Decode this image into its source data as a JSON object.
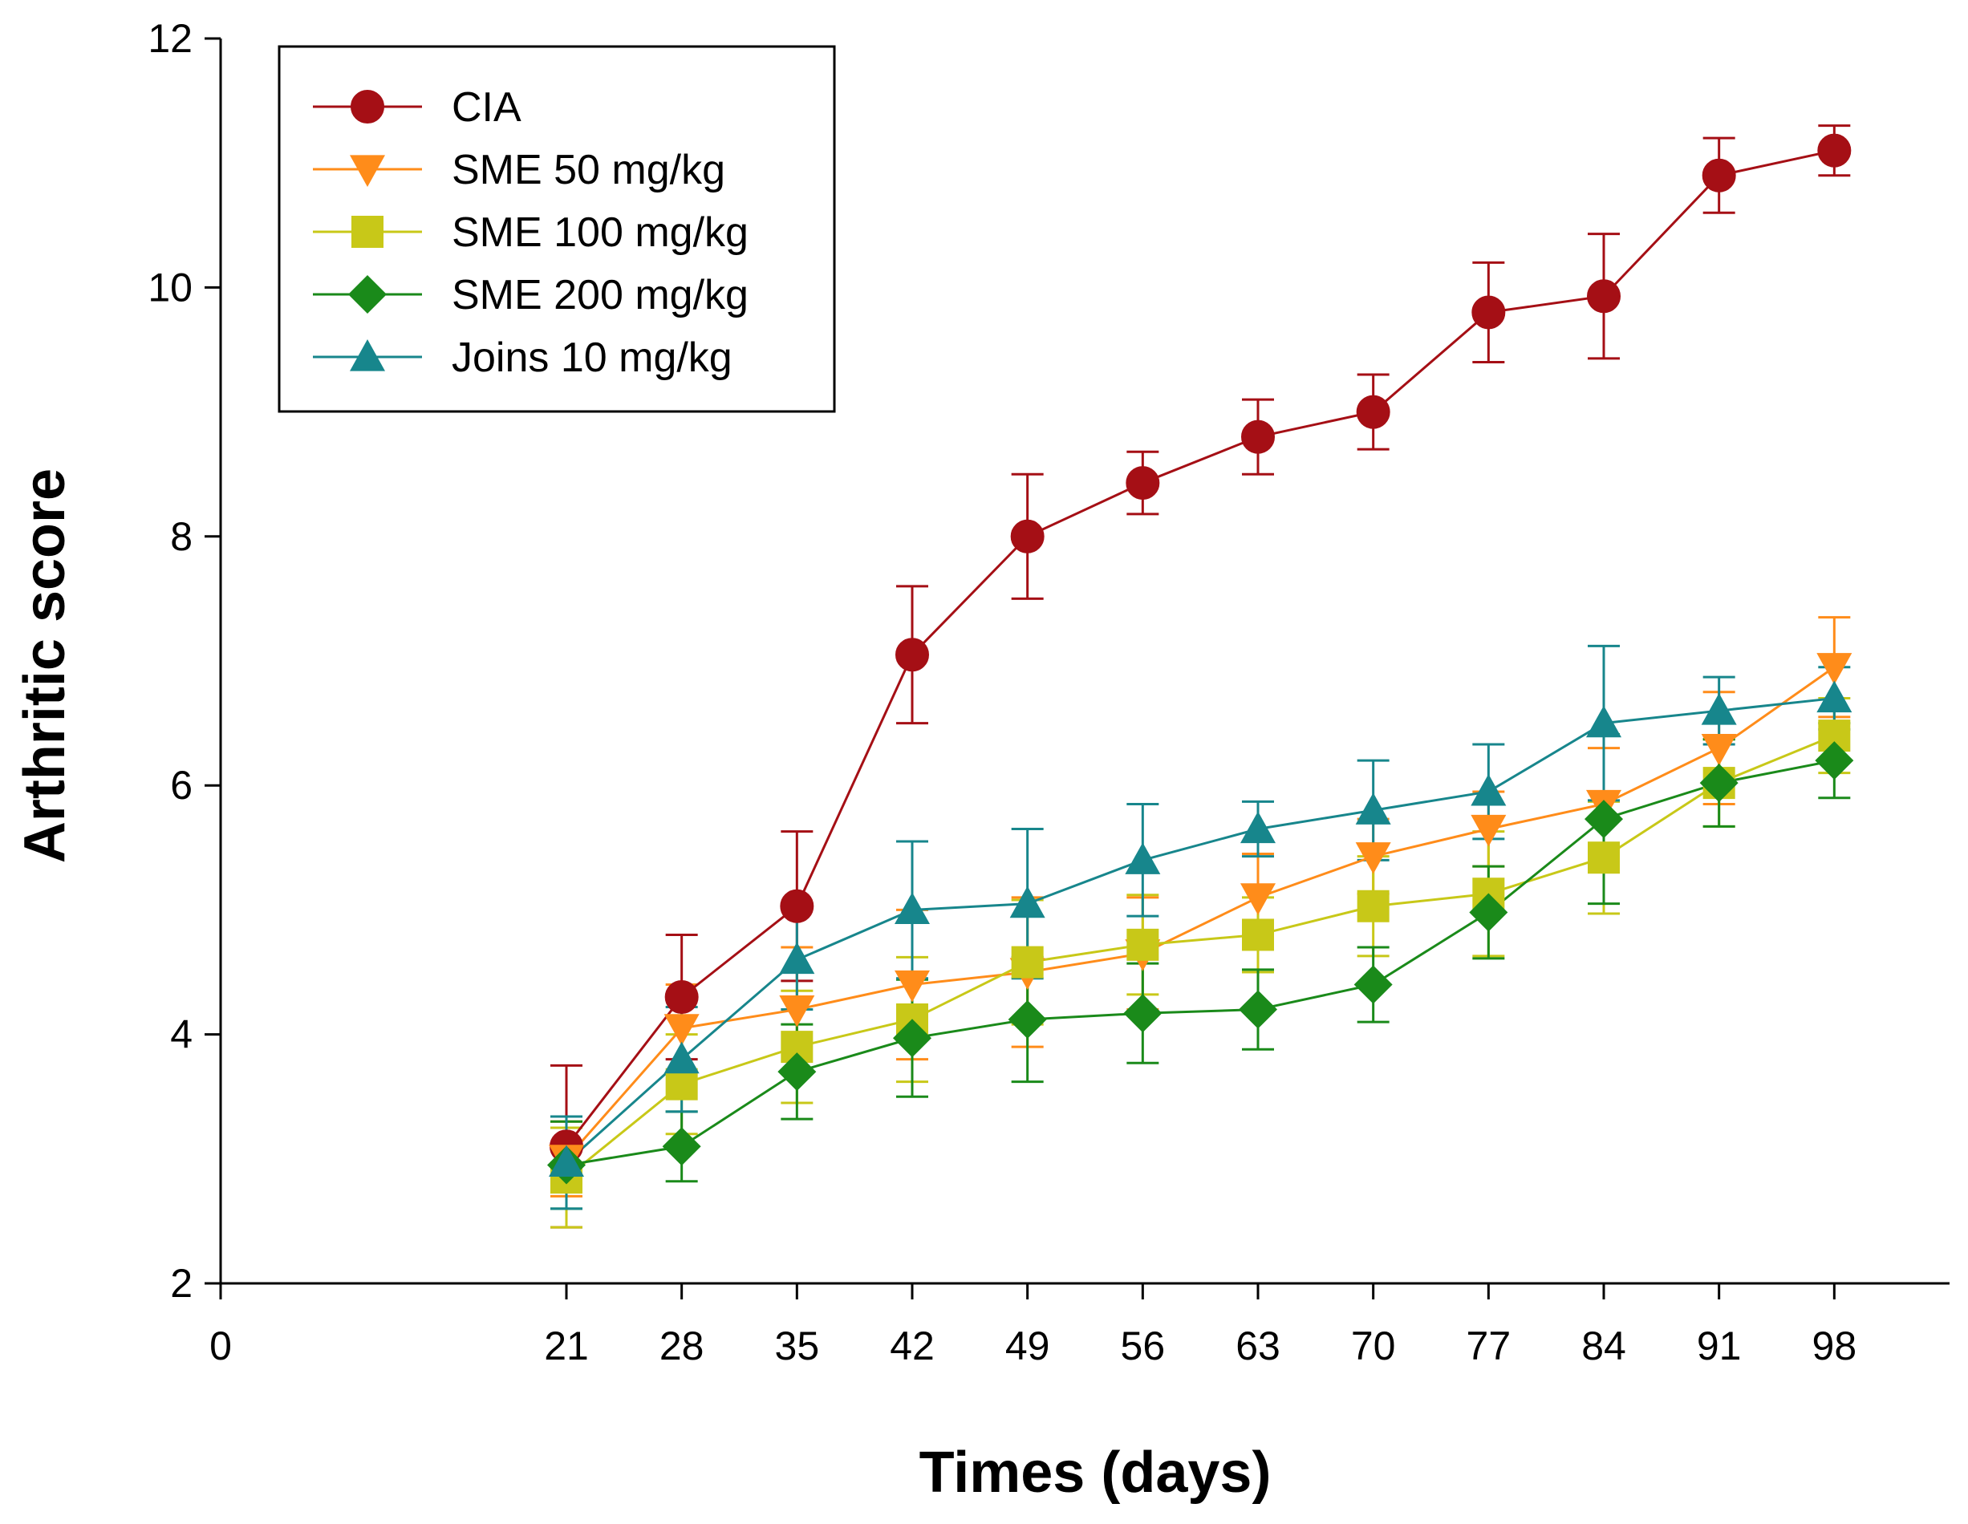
{
  "chart_data": {
    "type": "line",
    "title": "",
    "xlabel": "Times (days)",
    "ylabel": "Arthritic score",
    "xlim": [
      0,
      105
    ],
    "ylim": [
      2,
      12
    ],
    "xticks": [
      0,
      21,
      28,
      35,
      42,
      49,
      56,
      63,
      70,
      77,
      84,
      91,
      98
    ],
    "yticks": [
      2,
      4,
      6,
      8,
      10,
      12
    ],
    "grid": false,
    "legend_position": "top-left",
    "x": [
      21,
      28,
      35,
      42,
      49,
      56,
      63,
      70,
      77,
      84,
      91,
      98
    ],
    "series": [
      {
        "name": "CIA",
        "color": "#a50f15",
        "marker": "circle",
        "values": [
          3.1,
          4.3,
          5.03,
          7.05,
          8.0,
          8.43,
          8.8,
          9.0,
          9.8,
          9.93,
          10.9,
          11.1
        ],
        "errors": [
          0.65,
          0.5,
          0.6,
          0.55,
          0.5,
          0.25,
          0.3,
          0.3,
          0.4,
          0.5,
          0.3,
          0.2
        ]
      },
      {
        "name": "SME 50 mg/kg",
        "color": "#ff8c1a",
        "marker": "triangle-down",
        "values": [
          3.0,
          4.05,
          4.2,
          4.4,
          4.5,
          4.65,
          5.1,
          5.43,
          5.65,
          5.85,
          6.3,
          6.95
        ],
        "errors": [
          0.3,
          0.35,
          0.5,
          0.6,
          0.6,
          0.45,
          0.35,
          0.3,
          0.3,
          0.45,
          0.45,
          0.4
        ]
      },
      {
        "name": "SME 100 mg/kg",
        "color": "#c8c818",
        "marker": "square",
        "values": [
          2.85,
          3.6,
          3.9,
          4.12,
          4.58,
          4.72,
          4.8,
          5.03,
          5.13,
          5.42,
          6.02,
          6.4
        ],
        "errors": [
          0.4,
          0.4,
          0.45,
          0.5,
          0.5,
          0.4,
          0.3,
          0.4,
          0.5,
          0.45,
          0.35,
          0.3
        ]
      },
      {
        "name": "SME 200 mg/kg",
        "color": "#1a8a1a",
        "marker": "diamond",
        "values": [
          2.95,
          3.1,
          3.7,
          3.97,
          4.12,
          4.17,
          4.2,
          4.4,
          4.98,
          5.73,
          6.02,
          6.2
        ],
        "errors": [
          0.35,
          0.28,
          0.38,
          0.47,
          0.5,
          0.4,
          0.32,
          0.3,
          0.37,
          0.68,
          0.35,
          0.3
        ]
      },
      {
        "name": "Joins 10 mg/kg",
        "color": "#17868c",
        "marker": "triangle-up",
        "values": [
          2.97,
          3.8,
          4.6,
          5.0,
          5.05,
          5.4,
          5.65,
          5.8,
          5.95,
          6.5,
          6.6,
          6.7
        ],
        "errors": [
          0.37,
          0.42,
          0.4,
          0.55,
          0.6,
          0.45,
          0.22,
          0.4,
          0.38,
          0.62,
          0.27,
          0.25
        ]
      }
    ]
  }
}
